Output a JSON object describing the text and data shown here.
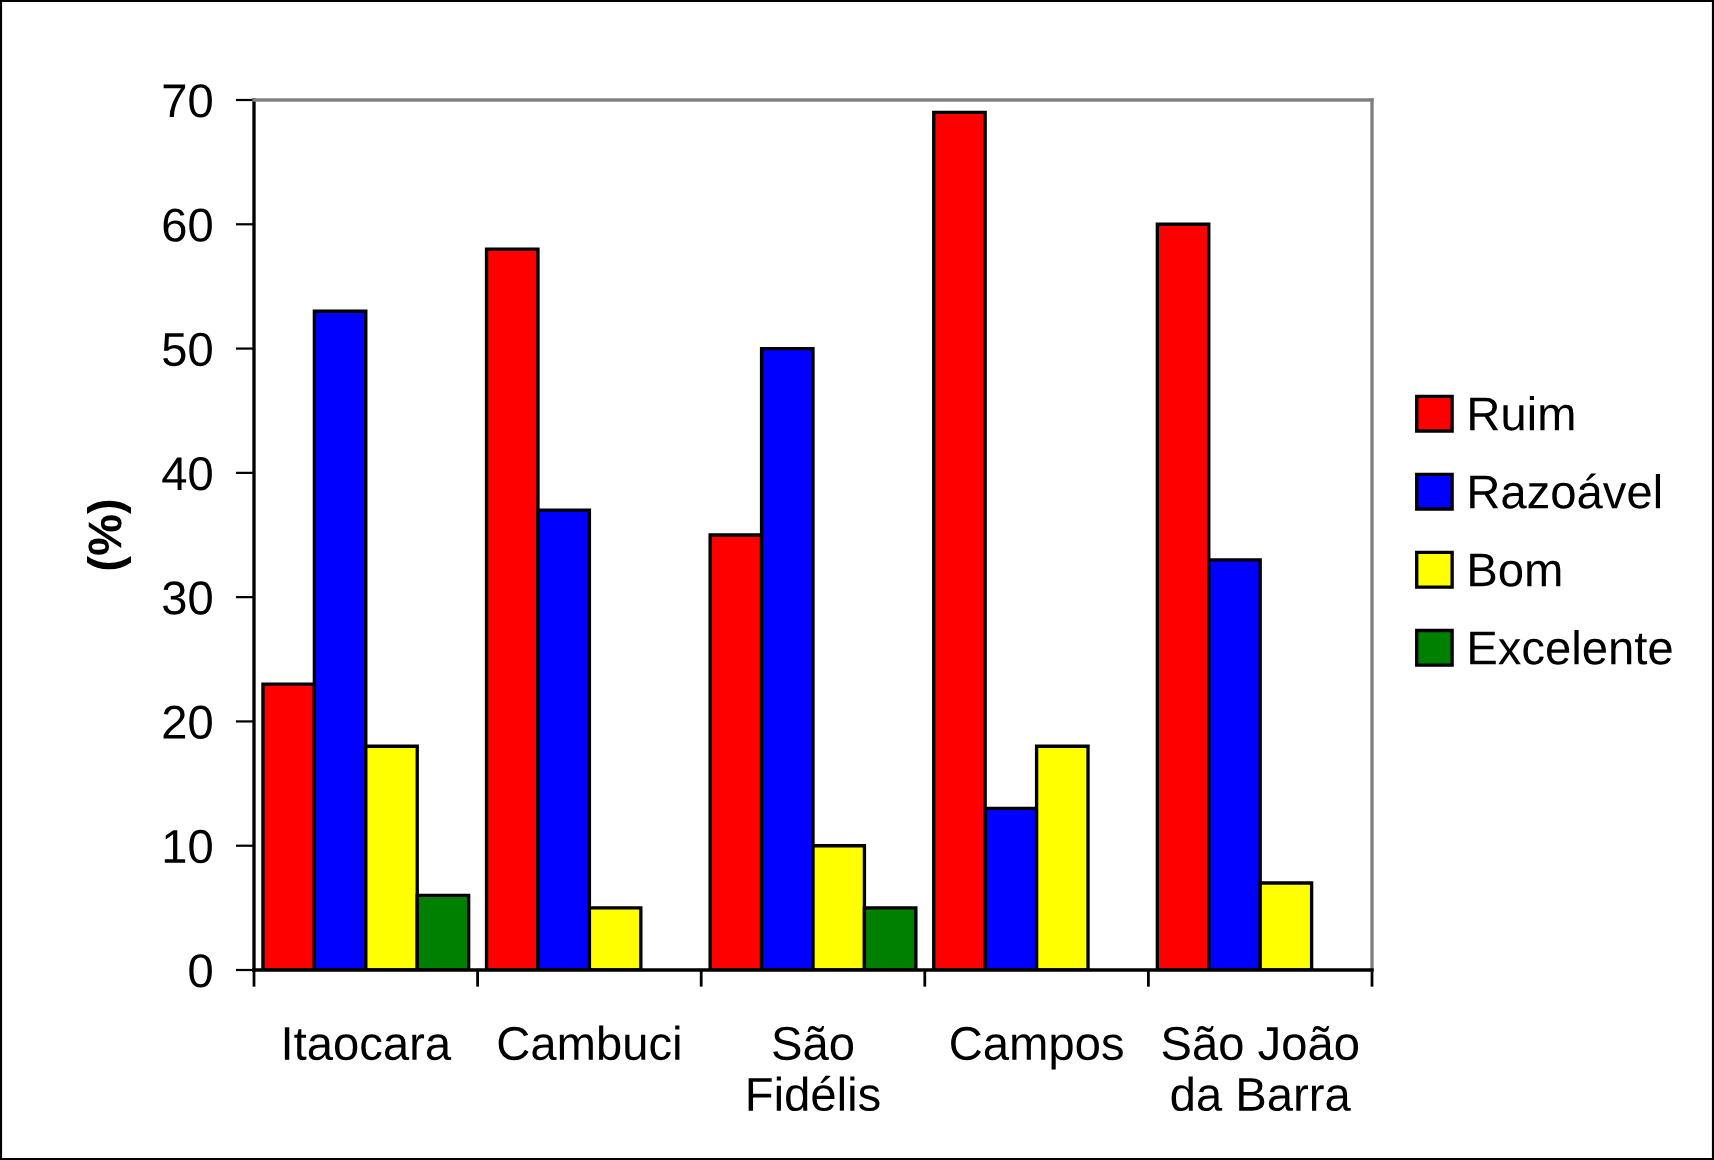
{
  "chart_data": {
    "type": "bar",
    "ylabel": "(%)",
    "categories": [
      "Itaocara",
      "Cambuci",
      "São\nFidélis",
      "Campos",
      "São João\nda Barra"
    ],
    "series": [
      {
        "name": "Ruim",
        "color": "#ff0000",
        "values": [
          23,
          58,
          35,
          69,
          60
        ]
      },
      {
        "name": "Razoável",
        "color": "#0000ff",
        "values": [
          53,
          37,
          50,
          13,
          33
        ]
      },
      {
        "name": "Bom",
        "color": "#ffff00",
        "values": [
          18,
          5,
          10,
          18,
          7
        ]
      },
      {
        "name": "Excelente",
        "color": "#008000",
        "values": [
          6,
          null,
          5,
          null,
          null
        ]
      }
    ],
    "ylim": [
      0,
      70
    ],
    "yticks": [
      0,
      10,
      20,
      30,
      40,
      50,
      60,
      70
    ],
    "grid": false,
    "legend": "right"
  }
}
